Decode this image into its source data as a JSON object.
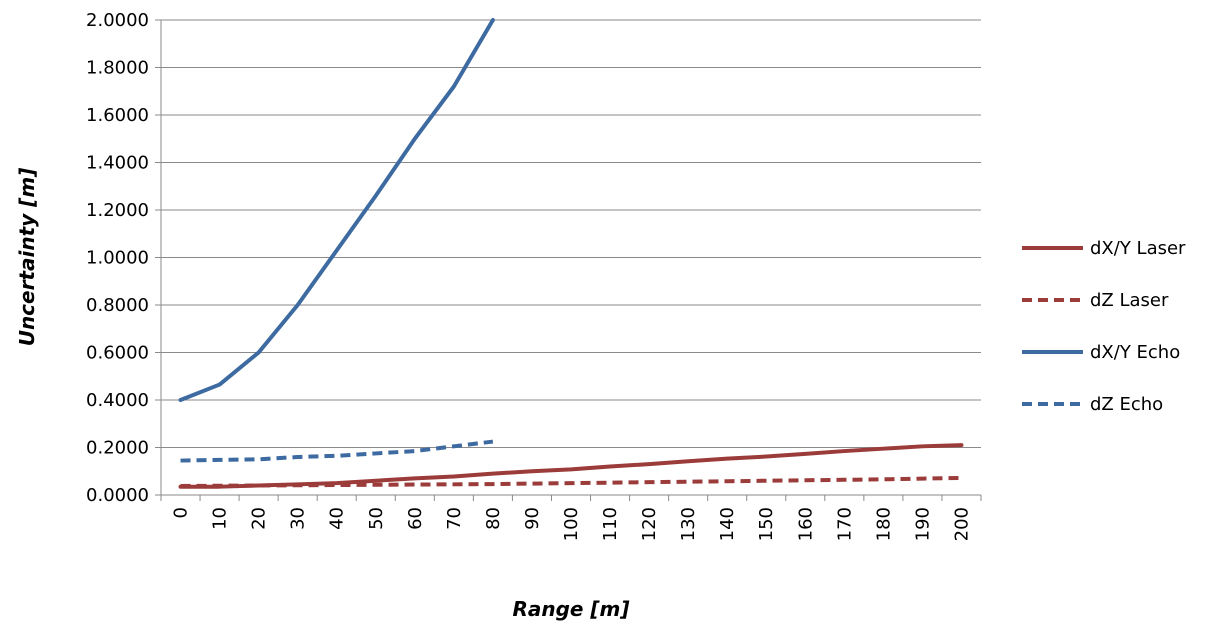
{
  "chart_data": {
    "type": "line",
    "title": "",
    "xlabel": "Range [m]",
    "ylabel": "Uncertainty [m]",
    "ylim": [
      0,
      2
    ],
    "y_tick_labels": [
      "0.0000",
      "0.2000",
      "0.4000",
      "0.6000",
      "0.8000",
      "1.0000",
      "1.2000",
      "1.4000",
      "1.6000",
      "1.8000",
      "2.0000"
    ],
    "categories": [
      "0",
      "10",
      "20",
      "30",
      "40",
      "50",
      "60",
      "70",
      "80",
      "90",
      "100",
      "110",
      "120",
      "130",
      "140",
      "150",
      "160",
      "170",
      "180",
      "190",
      "200"
    ],
    "grid": "horizontal",
    "legend_position": "right",
    "series": [
      {
        "name": "dX/Y Laser",
        "color": "#9b3b3a",
        "dash": "solid",
        "values": [
          0.035,
          0.035,
          0.04,
          0.045,
          0.05,
          0.06,
          0.07,
          0.078,
          0.09,
          0.1,
          0.108,
          0.12,
          0.13,
          0.142,
          0.153,
          0.162,
          0.173,
          0.185,
          0.195,
          0.205,
          0.21
        ]
      },
      {
        "name": "dZ Laser",
        "color": "#9b3b3a",
        "dash": "dashed",
        "values": [
          0.038,
          0.039,
          0.04,
          0.041,
          0.042,
          0.043,
          0.044,
          0.045,
          0.046,
          0.048,
          0.05,
          0.052,
          0.054,
          0.056,
          0.058,
          0.06,
          0.062,
          0.064,
          0.066,
          0.069,
          0.072
        ]
      },
      {
        "name": "dX/Y Echo",
        "color": "#3d6aa0",
        "dash": "solid",
        "values": [
          0.4,
          0.465,
          0.6,
          0.8,
          1.03,
          1.26,
          1.5,
          1.72,
          2.0,
          null,
          null,
          null,
          null,
          null,
          null,
          null,
          null,
          null,
          null,
          null,
          null
        ]
      },
      {
        "name": "dZ Echo",
        "color": "#3d6aa0",
        "dash": "dashed",
        "values": [
          0.145,
          0.148,
          0.15,
          0.16,
          0.165,
          0.175,
          0.185,
          0.205,
          0.225,
          null,
          null,
          null,
          null,
          null,
          null,
          null,
          null,
          null,
          null,
          null,
          null
        ]
      }
    ]
  }
}
